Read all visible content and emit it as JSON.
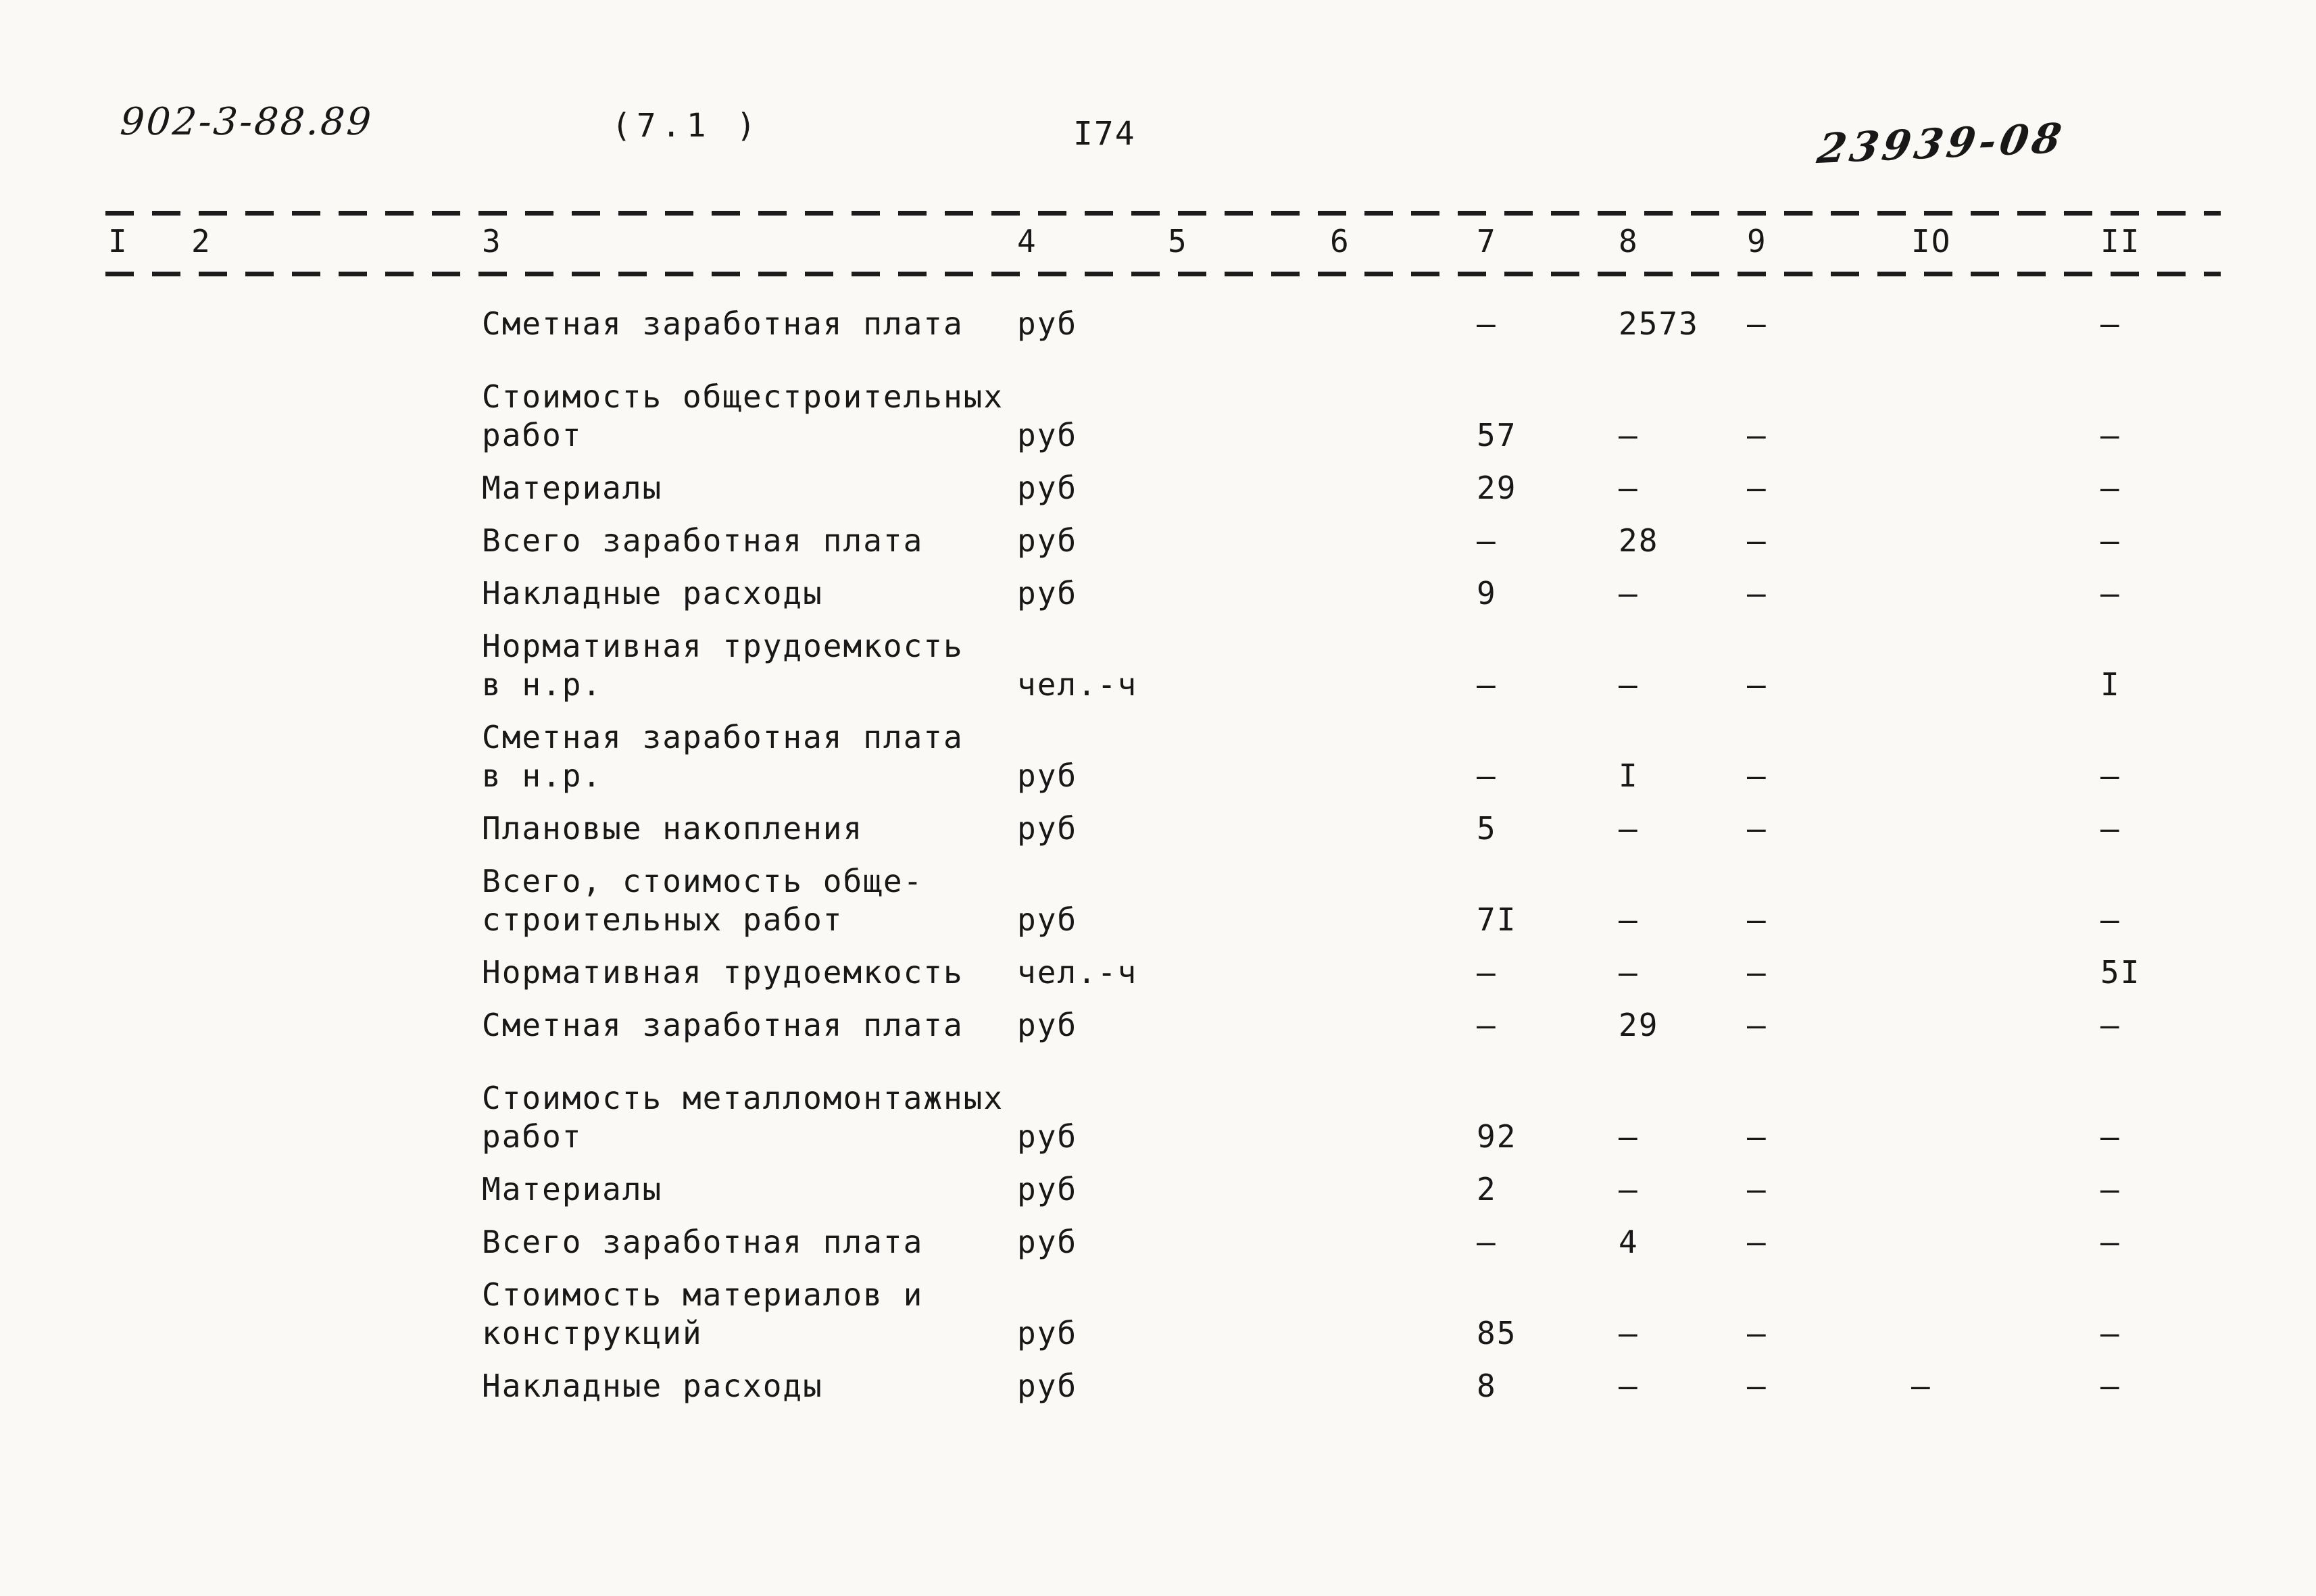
{
  "page": {
    "doc_number": "902-3-88.89",
    "sheet_ref": "(7.1 )",
    "page_number": "I74",
    "handwritten_code": "23939-08"
  },
  "table": {
    "column_numbers": [
      "I",
      "2",
      "3",
      "4",
      "5",
      "6",
      "7",
      "8",
      "9",
      "IO",
      "II"
    ],
    "rows": [
      {
        "label": "Сметная заработная плата",
        "unit": "руб",
        "c7": "–",
        "c8": "2573",
        "c9": "–",
        "c10": "",
        "c11": "–",
        "group_start": false
      },
      {
        "label": "Стоимость общестроительных\nработ",
        "unit": "руб",
        "c7": "57",
        "c8": "–",
        "c9": "–",
        "c10": "",
        "c11": "–",
        "group_start": true
      },
      {
        "label": "Материалы",
        "unit": "руб",
        "c7": "29",
        "c8": "–",
        "c9": "–",
        "c10": "",
        "c11": "–",
        "group_start": false
      },
      {
        "label": "Всего заработная плата",
        "unit": "руб",
        "c7": "–",
        "c8": "28",
        "c9": "–",
        "c10": "",
        "c11": "–",
        "group_start": false
      },
      {
        "label": "Накладные расходы",
        "unit": "руб",
        "c7": "9",
        "c8": "–",
        "c9": "–",
        "c10": "",
        "c11": "–",
        "group_start": false
      },
      {
        "label": "Нормативная трудоемкость\nв н.р.",
        "unit": "чел.-ч",
        "c7": "–",
        "c8": "–",
        "c9": "–",
        "c10": "",
        "c11": "I",
        "group_start": false
      },
      {
        "label": "Сметная заработная плата\nв н.р.",
        "unit": "руб",
        "c7": "–",
        "c8": "I",
        "c9": "–",
        "c10": "",
        "c11": "–",
        "group_start": false
      },
      {
        "label": "Плановые накопления",
        "unit": "руб",
        "c7": "5",
        "c8": "–",
        "c9": "–",
        "c10": "",
        "c11": "–",
        "group_start": false
      },
      {
        "label": "Всего, стоимость обще-\nстроительных работ",
        "unit": "руб",
        "c7": "7I",
        "c8": "–",
        "c9": "–",
        "c10": "",
        "c11": "–",
        "group_start": false
      },
      {
        "label": "Нормативная трудоемкость",
        "unit": "чел.-ч",
        "c7": "–",
        "c8": "–",
        "c9": "–",
        "c10": "",
        "c11": "5I",
        "group_start": false
      },
      {
        "label": "Сметная заработная плата",
        "unit": "руб",
        "c7": "–",
        "c8": "29",
        "c9": "–",
        "c10": "",
        "c11": "–",
        "group_start": false
      },
      {
        "label": "Стоимость металломонтажных\nработ",
        "unit": "руб",
        "c7": "92",
        "c8": "–",
        "c9": "–",
        "c10": "",
        "c11": "–",
        "group_start": true
      },
      {
        "label": "Материалы",
        "unit": "руб",
        "c7": "2",
        "c8": "–",
        "c9": "–",
        "c10": "",
        "c11": "–",
        "group_start": false
      },
      {
        "label": "Всего заработная плата",
        "unit": "руб",
        "c7": "–",
        "c8": "4",
        "c9": "–",
        "c10": "",
        "c11": "–",
        "group_start": false
      },
      {
        "label": "Стоимость материалов и\nконструкций",
        "unit": "руб",
        "c7": "85",
        "c8": "–",
        "c9": "–",
        "c10": "",
        "c11": "–",
        "group_start": false
      },
      {
        "label": "Накладные расходы",
        "unit": "руб",
        "c7": "8",
        "c8": "–",
        "c9": "–",
        "c10": "–",
        "c11": "–",
        "group_start": false
      }
    ]
  }
}
